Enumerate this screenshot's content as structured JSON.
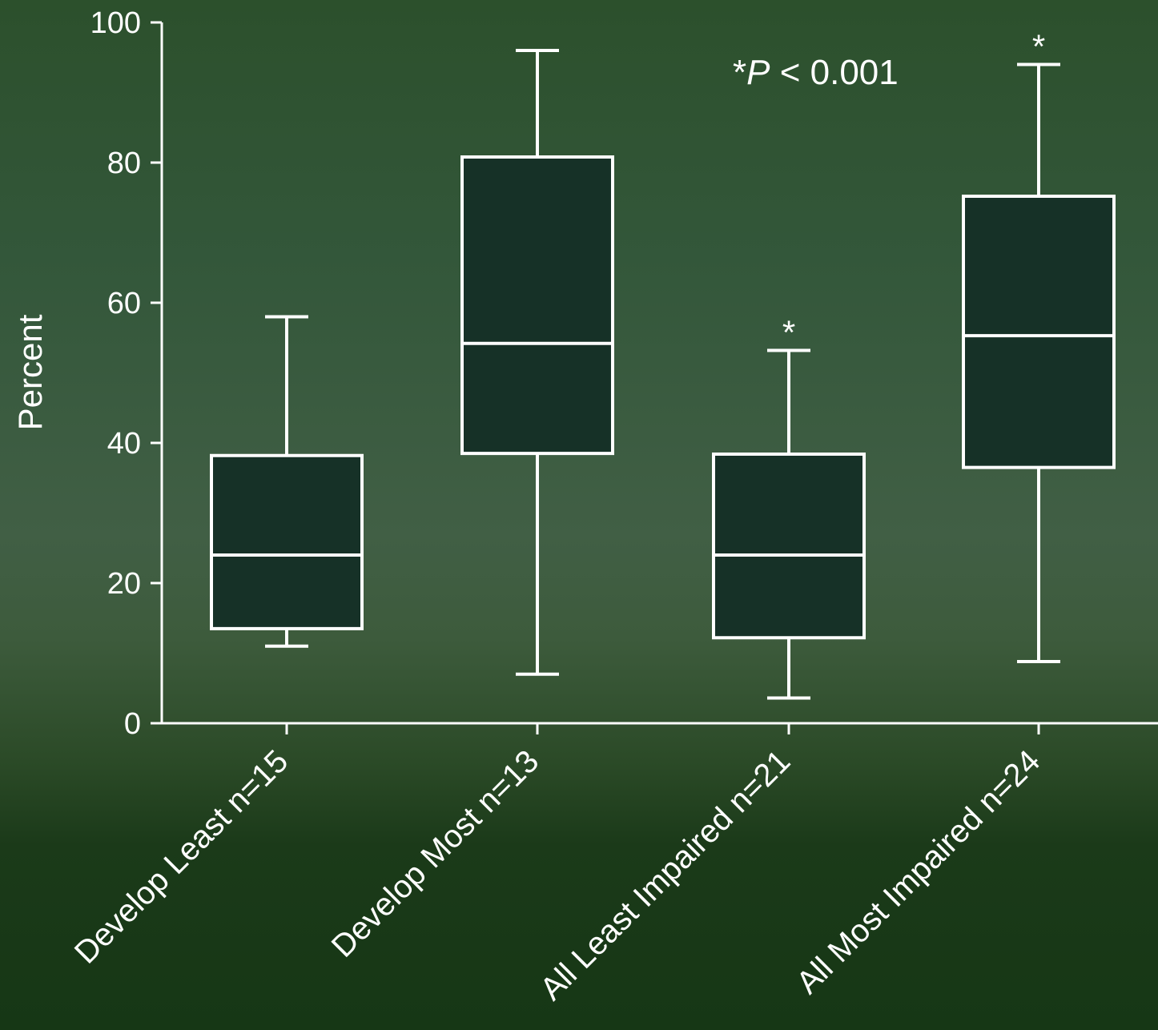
{
  "chart_data": {
    "type": "boxplot",
    "ylabel": "Percent",
    "ylim": [
      0,
      100
    ],
    "yticks": [
      "0",
      "20",
      "40",
      "60",
      "80",
      "100"
    ],
    "annotation": {
      "prefix": "*",
      "italic": "P",
      "suffix": " < 0.001"
    },
    "categories": [
      "Develop Least n=15",
      "Develop Most n=13",
      "All Least Impaired n=21",
      "All Most Impaired n=24"
    ],
    "boxes": [
      {
        "min": 11,
        "q1": 13.5,
        "median": 24,
        "q3": 38.2,
        "max": 58,
        "star": ""
      },
      {
        "min": 7,
        "q1": 38.5,
        "median": 54.2,
        "q3": 80.8,
        "max": 96,
        "star": ""
      },
      {
        "min": 3.6,
        "q1": 12.2,
        "median": 24,
        "q3": 38.4,
        "max": 53.2,
        "star": "*"
      },
      {
        "min": 8.8,
        "q1": 36.5,
        "median": 55.3,
        "q3": 75.2,
        "max": 94,
        "star": "*"
      }
    ]
  }
}
